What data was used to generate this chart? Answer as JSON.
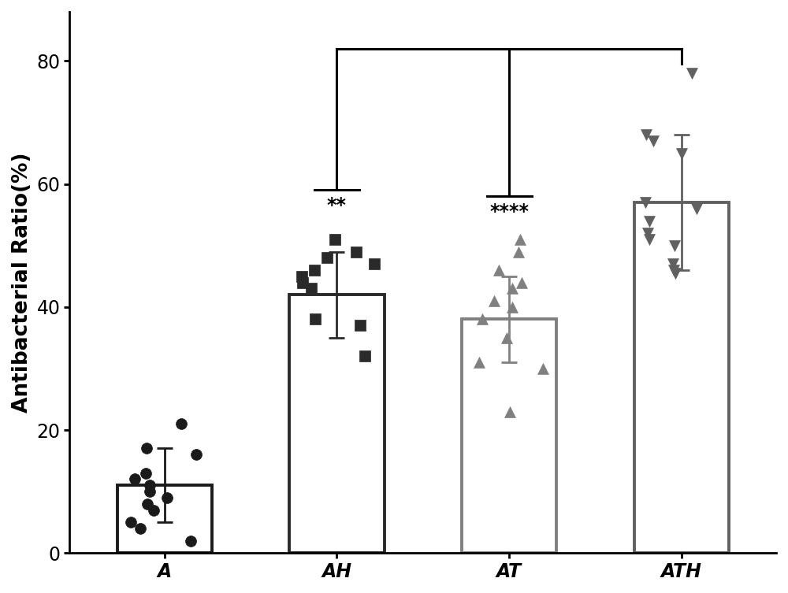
{
  "categories": [
    "A",
    "AH",
    "AT",
    "ATH"
  ],
  "means": [
    11.0,
    42.0,
    38.0,
    57.0
  ],
  "errors": [
    6.0,
    7.0,
    7.0,
    11.0
  ],
  "bar_fill_colors": [
    "#ffffff",
    "#ffffff",
    "#ffffff",
    "#ffffff"
  ],
  "bar_edge_colors": [
    "#1a1a1a",
    "#2a2a2a",
    "#808080",
    "#606060"
  ],
  "bar_linewidth": 2.8,
  "ylim": [
    0,
    88
  ],
  "yticks": [
    0,
    20,
    40,
    60,
    80
  ],
  "ylabel": "Antibacterial Ratio(%)",
  "ylabel_fontsize": 19,
  "tick_fontsize": 17,
  "scatter_A": [
    2.0,
    4.0,
    5.0,
    7.0,
    8.0,
    9.0,
    10.0,
    11.0,
    12.0,
    13.0,
    16.0,
    17.0,
    21.0
  ],
  "scatter_AH": [
    32.0,
    37.0,
    38.0,
    43.0,
    44.0,
    45.0,
    46.0,
    47.0,
    48.0,
    49.0,
    51.0
  ],
  "scatter_AT": [
    23.0,
    30.0,
    31.0,
    35.0,
    38.0,
    40.0,
    41.0,
    43.0,
    44.0,
    46.0,
    49.0,
    51.0
  ],
  "scatter_ATH": [
    45.5,
    46.0,
    47.0,
    50.0,
    51.0,
    52.0,
    54.0,
    56.0,
    57.0,
    65.0,
    67.0,
    68.0,
    78.0
  ],
  "scatter_color_A": "#1a1a1a",
  "scatter_color_AH": "#2a2a2a",
  "scatter_color_AT": "#808080",
  "scatter_color_ATH": "#606060",
  "marker_A": "o",
  "marker_AH": "s",
  "marker_AT": "^",
  "marker_ATH": "v",
  "marker_size": 100,
  "significance_AH": "**",
  "significance_AT": "****",
  "sig_fontsize": 17,
  "bracket_color": "#000000",
  "bracket_linewidth": 2.2,
  "figsize": [
    10.0,
    7.53
  ],
  "dpi": 100,
  "background_color": "#ffffff",
  "bar_width": 0.55
}
